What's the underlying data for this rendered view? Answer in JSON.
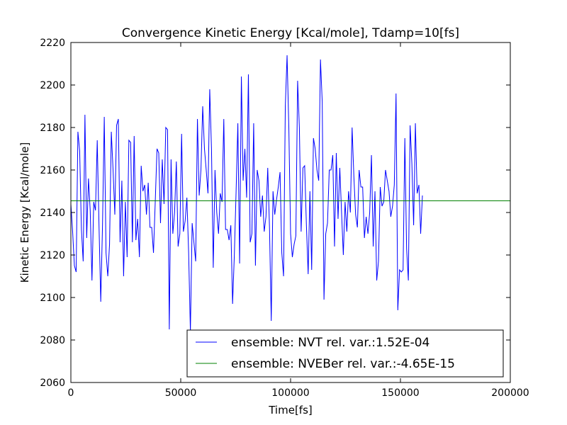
{
  "chart_data": {
    "type": "line",
    "title": "Convergence Kinetic Energy [Kcal/mole], Tdamp=10[fs]",
    "xlabel": "Time[fs]",
    "ylabel": "Kinetic Energy [Kcal/mole]",
    "xlim": [
      0,
      200000
    ],
    "ylim": [
      2060,
      2220
    ],
    "x_ticks": [
      0,
      50000,
      100000,
      150000,
      200000
    ],
    "y_ticks": [
      2060,
      2080,
      2100,
      2120,
      2140,
      2160,
      2180,
      2200,
      2220
    ],
    "grid": false,
    "legend_position": "bottom-right",
    "series": [
      {
        "name": "ensemble: NVT rel. var.:1.52E-04",
        "color": "#0000ff",
        "x_start": 0,
        "x_step": 800,
        "values": [
          2144,
          2131,
          2115,
          2112,
          2178,
          2169,
          2132,
          2117,
          2186,
          2128,
          2156,
          2141,
          2108,
          2145,
          2141,
          2174,
          2134,
          2098,
          2134,
          2185,
          2121,
          2110,
          2125,
          2178,
          2160,
          2139,
          2181,
          2184,
          2126,
          2155,
          2110,
          2145,
          2119,
          2174,
          2173,
          2126,
          2176,
          2127,
          2137,
          2119,
          2162,
          2150,
          2153,
          2139,
          2154,
          2133,
          2133,
          2121,
          2145,
          2170,
          2168,
          2135,
          2165,
          2144,
          2180,
          2179,
          2085,
          2165,
          2130,
          2140,
          2164,
          2124,
          2130,
          2177,
          2131,
          2136,
          2147,
          2121,
          2084,
          2135,
          2126,
          2117,
          2184,
          2148,
          2160,
          2190,
          2170,
          2160,
          2149,
          2198,
          2170,
          2114,
          2160,
          2140,
          2130,
          2149,
          2145,
          2184,
          2132,
          2132,
          2127,
          2134,
          2097,
          2120,
          2150,
          2182,
          2116,
          2204,
          2155,
          2170,
          2147,
          2205,
          2126,
          2130,
          2182,
          2115,
          2160,
          2155,
          2138,
          2148,
          2131,
          2138,
          2161,
          2133,
          2089,
          2150,
          2139,
          2146,
          2152,
          2159,
          2121,
          2110,
          2190,
          2214,
          2180,
          2130,
          2119,
          2125,
          2129,
          2202,
          2180,
          2131,
          2161,
          2162,
          2134,
          2111,
          2150,
          2113,
          2175,
          2170,
          2160,
          2155,
          2212,
          2192,
          2099,
          2130,
          2135,
          2160,
          2160,
          2167,
          2124,
          2168,
          2137,
          2161,
          2140,
          2120,
          2145,
          2131,
          2150,
          2140,
          2180,
          2157,
          2139,
          2133,
          2160,
          2152,
          2152,
          2128,
          2138,
          2130,
          2140,
          2167,
          2124,
          2150,
          2108,
          2117,
          2152,
          2143,
          2145,
          2160,
          2155,
          2150,
          2138,
          2143,
          2153,
          2196,
          2094,
          2113,
          2112,
          2113,
          2175,
          2123,
          2108,
          2181,
          2163,
          2134,
          2182,
          2149,
          2153,
          2130,
          2148
        ]
      },
      {
        "name": "ensemble: NVEBer rel. var.:-4.65E-15",
        "color": "#008000",
        "x": [
          0,
          200000
        ],
        "values": [
          2145.5,
          2145.5
        ]
      }
    ]
  }
}
